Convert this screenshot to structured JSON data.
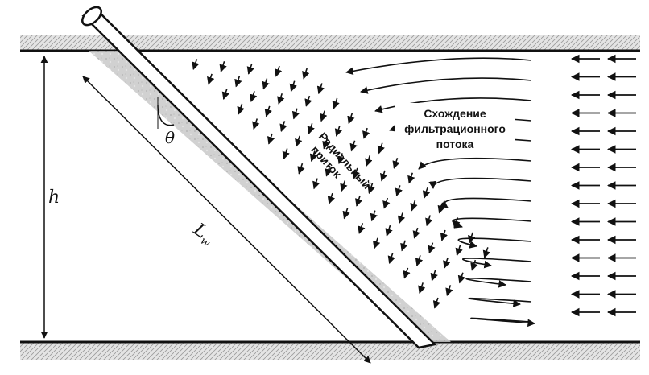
{
  "labels": {
    "h": "h",
    "theta": "θ",
    "lw_main": "L",
    "lw_sub": "w",
    "radial_line1": "Радиальный",
    "radial_line2": "приток",
    "converge_line1": "Схождение",
    "converge_line2": "фильтрационного",
    "converge_line3": "потока"
  },
  "colors": {
    "ink": "#111111",
    "stratum_fill": "#d9d9d9",
    "damage_zone": "#bdbdbd"
  }
}
